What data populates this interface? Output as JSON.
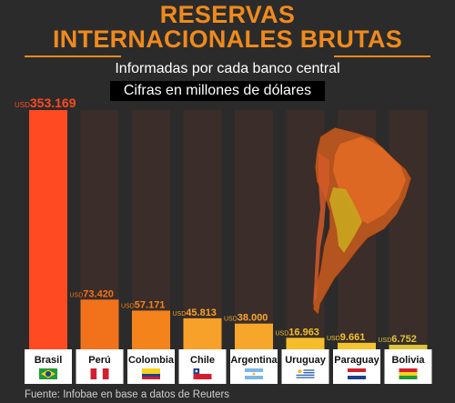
{
  "header": {
    "title_line1": "RESERVAS",
    "title_line2": "INTERNACIONALES BRUTAS",
    "subtitle": "Informadas por cada banco central",
    "units": "Cifras en millones de dólares"
  },
  "footer": {
    "source": "Fuente: Infobae en base a datos de Reuters"
  },
  "colors": {
    "background": "#2b2b2b",
    "title": "#f08a1c",
    "column_shadow": "#3a2d2a",
    "bars": [
      "#ff4a22",
      "#f2721c",
      "#f4831c",
      "#f7a12a",
      "#f7a62c",
      "#f5bd2a",
      "#f5c42e",
      "#dcc43a"
    ]
  },
  "chart_data": {
    "type": "bar",
    "title": "RESERVAS INTERNACIONALES BRUTAS",
    "subtitle": "Informadas por cada banco central",
    "unit_note": "Cifras en millones de dólares",
    "value_prefix": "USD",
    "categories": [
      "Brasil",
      "Perú",
      "Colombia",
      "Chile",
      "Argentina",
      "Uruguay",
      "Paraguay",
      "Bolivia"
    ],
    "values": [
      353169,
      73420,
      57171,
      45813,
      38000,
      16963,
      9661,
      6752
    ],
    "value_labels": [
      "353.169",
      "73.420",
      "57.171",
      "45.813",
      "38.000",
      "16.963",
      "9.661",
      "6.752"
    ],
    "flags": [
      "flag-brazil",
      "flag-peru",
      "flag-colombia",
      "flag-chile",
      "flag-argentina",
      "flag-uruguay",
      "flag-paraguay",
      "flag-bolivia"
    ],
    "ylim": [
      0,
      353169
    ],
    "grid": false,
    "legend": "none",
    "annotations": [
      "South America map graphic"
    ]
  }
}
